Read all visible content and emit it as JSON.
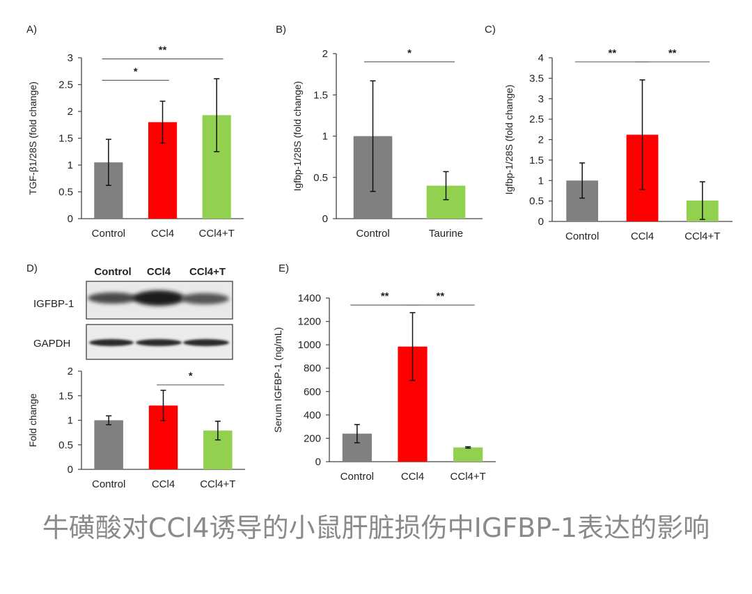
{
  "colors": {
    "control": "#808080",
    "ccl4": "#ff0000",
    "treat": "#92d050",
    "axis": "#444444"
  },
  "caption": "牛磺酸对CCl4诱导的小鼠肝脏损伤中IGFBP-1表达的影响",
  "chart_data": [
    {
      "panel": "A)",
      "type": "bar",
      "ylabel": "TGF-β1/28S (fold change)",
      "ylim": [
        0,
        3
      ],
      "yticks": [
        "0",
        "0.5",
        "1",
        "1.5",
        "2",
        "2.5",
        "3"
      ],
      "categories": [
        "Control",
        "CCl4",
        "CCl4+T"
      ],
      "values": [
        1.05,
        1.8,
        1.93
      ],
      "errors": [
        0.43,
        0.39,
        0.68
      ],
      "significance": [
        {
          "from": 0,
          "to": 1,
          "level": 2.58,
          "label": "*"
        },
        {
          "from": 0,
          "to": 2,
          "level": 2.98,
          "label": "**"
        }
      ]
    },
    {
      "panel": "B)",
      "type": "bar",
      "ylabel": "Igfbp-1/28S (fold change)",
      "ylim": [
        0,
        2
      ],
      "yticks": [
        "0",
        "0.5",
        "1",
        "1.5",
        "2"
      ],
      "categories": [
        "Control",
        "Taurine"
      ],
      "values": [
        1.0,
        0.4
      ],
      "errors": [
        0.67,
        0.17
      ],
      "significance": [
        {
          "from": 0,
          "to": 1,
          "level": 1.9,
          "label": "*"
        }
      ]
    },
    {
      "panel": "C)",
      "type": "bar",
      "ylabel": "Igfbp-1/28S (fold change)",
      "ylim": [
        0,
        4
      ],
      "yticks": [
        "0",
        "0.5",
        "1",
        "1.5",
        "2",
        "2.5",
        "3",
        "3.5",
        "4"
      ],
      "categories": [
        "Control",
        "CCl4",
        "CCl4+T"
      ],
      "values": [
        1.0,
        2.12,
        0.51
      ],
      "errors": [
        0.43,
        1.34,
        0.46
      ],
      "significance": [
        {
          "from": 0,
          "to": 1,
          "level": 3.9,
          "label": "**"
        },
        {
          "from": 1,
          "to": 2,
          "level": 3.9,
          "label": "**"
        }
      ]
    },
    {
      "panel": "D)",
      "type": "bar",
      "ylabel": "Fold change",
      "ylim": [
        0,
        2
      ],
      "yticks": [
        "0",
        "0.5",
        "1",
        "1.5",
        "2"
      ],
      "categories": [
        "Control",
        "CCl4",
        "CCl4+T"
      ],
      "values": [
        1.0,
        1.3,
        0.79
      ],
      "errors": [
        0.09,
        0.31,
        0.19
      ],
      "significance": [
        {
          "from": 1,
          "to": 2,
          "level": 1.72,
          "label": "*"
        }
      ]
    },
    {
      "panel": "E)",
      "type": "bar",
      "ylabel": "Serum IGFBP-1 (ng/mL)",
      "ylim": [
        0,
        1400
      ],
      "yticks": [
        "0",
        "200",
        "400",
        "600",
        "800",
        "1000",
        "1200",
        "1400"
      ],
      "categories": [
        "Control",
        "CCl4",
        "CCl4+T"
      ],
      "values": [
        240,
        985,
        122
      ],
      "errors": [
        78,
        290,
        6
      ],
      "significance": [
        {
          "from": 0,
          "to": 1,
          "level": 1340,
          "label": "**"
        },
        {
          "from": 1,
          "to": 2,
          "level": 1340,
          "label": "**"
        }
      ]
    }
  ],
  "western_blot": {
    "lanes": [
      "Control",
      "CCl4",
      "CCl4+T"
    ],
    "rows": [
      "IGFBP-1",
      "GAPDH"
    ]
  }
}
